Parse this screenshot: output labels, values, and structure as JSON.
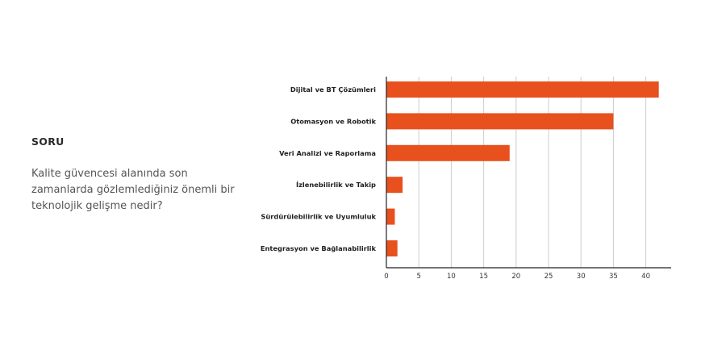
{
  "question": {
    "heading": "SORU",
    "text": "Kalite güvencesi alanında son zamanlarda gözlemlediğiniz önemli bir teknolojik gelişme nedir?"
  },
  "colors": {
    "bar": "#E8501E",
    "grid": "#cccccc",
    "axis": "#222222"
  },
  "chart_data": {
    "type": "bar",
    "orientation": "horizontal",
    "categories": [
      "Dijital ve BT Çözümleri",
      "Otomasyon ve Robotik",
      "Veri Analizi ve Raporlama",
      "İzlenebilirlik ve Takip",
      "Sürdürülebilirlik ve Uyumluluk",
      "Entegrasyon ve Bağlanabilirlik"
    ],
    "values": [
      42,
      35,
      19,
      2.5,
      1.3,
      1.7
    ],
    "xlim": [
      0,
      44
    ],
    "xticks": [
      0,
      5,
      10,
      15,
      20,
      25,
      30,
      35,
      40
    ],
    "grid": true,
    "legend": "none"
  }
}
